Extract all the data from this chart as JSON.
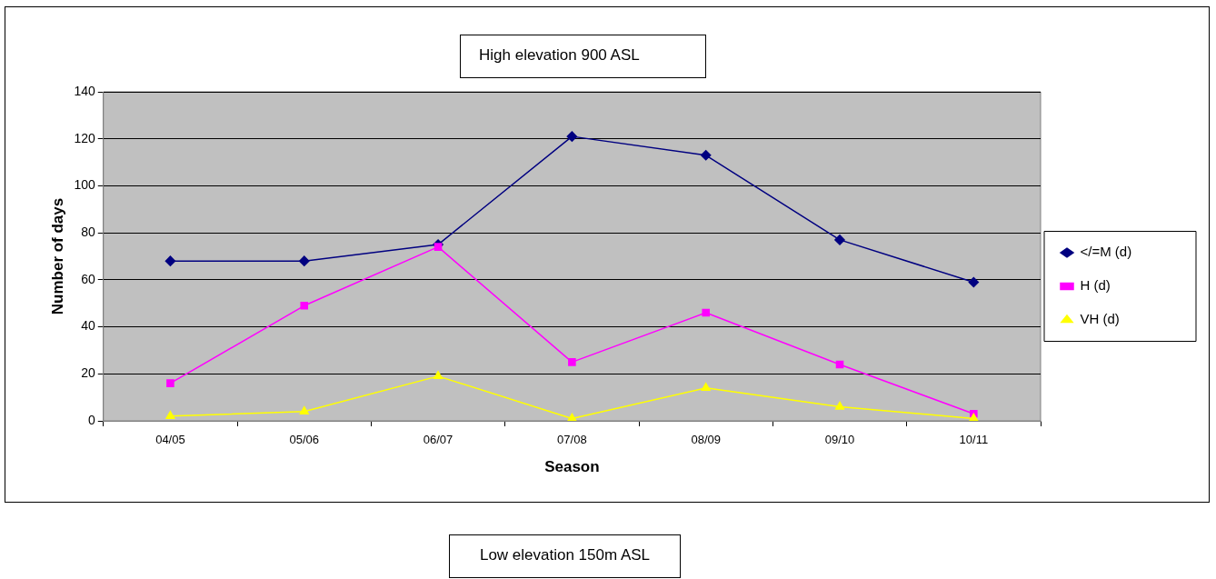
{
  "chart_data": {
    "type": "line",
    "title": "High elevation 900 ASL",
    "xlabel": "Season",
    "ylabel": "Number of days",
    "annotations": [
      "Low elevation 150m ASL"
    ],
    "categories": [
      "04/05",
      "05/06",
      "06/07",
      "07/08",
      "08/09",
      "09/10",
      "10/11"
    ],
    "series": [
      {
        "name": "</=M (d)",
        "color": "#000080",
        "marker": "diamond",
        "values": [
          68,
          68,
          75,
          121,
          113,
          77,
          59
        ]
      },
      {
        "name": "H (d)",
        "color": "#ff00ff",
        "marker": "square",
        "values": [
          16,
          49,
          74,
          25,
          46,
          24,
          3
        ]
      },
      {
        "name": "VH (d)",
        "color": "#ffff00",
        "marker": "triangle",
        "values": [
          2,
          4,
          19,
          1,
          14,
          6,
          1
        ]
      }
    ],
    "ylim": [
      0,
      140
    ],
    "yticks": [
      0,
      20,
      40,
      60,
      80,
      100,
      120,
      140
    ],
    "grid": "y",
    "legend": "right",
    "line_style": "solid"
  }
}
